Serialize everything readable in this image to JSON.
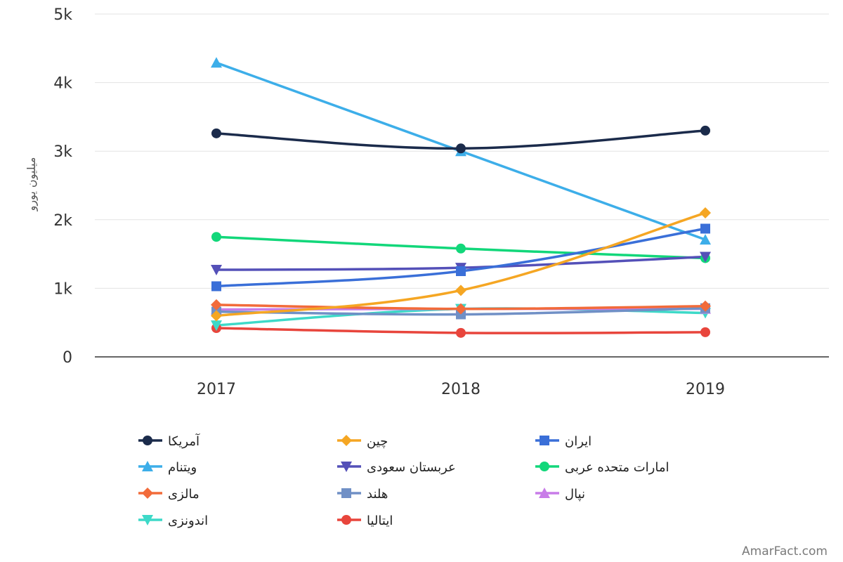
{
  "chart_data": {
    "type": "line",
    "x": [
      "2017",
      "2018",
      "2019"
    ],
    "ylabel": "میلیون یورو",
    "ylim": [
      0,
      5000
    ],
    "yticks": [
      {
        "value": 0,
        "label": "0"
      },
      {
        "value": 1000,
        "label": "1k"
      },
      {
        "value": 2000,
        "label": "2k"
      },
      {
        "value": 3000,
        "label": "3k"
      },
      {
        "value": 4000,
        "label": "4k"
      },
      {
        "value": 5000,
        "label": "5k"
      }
    ],
    "grid": true,
    "legend": "bottom",
    "series": [
      {
        "name": "آمریکا",
        "color": "#1b2b4b",
        "marker": "circle",
        "values": [
          3260,
          3040,
          3300
        ]
      },
      {
        "name": "چین",
        "color": "#f5a623",
        "marker": "diamond",
        "values": [
          600,
          970,
          2100
        ]
      },
      {
        "name": "ایران",
        "color": "#3a6fd8",
        "marker": "square",
        "values": [
          1030,
          1250,
          1870
        ]
      },
      {
        "name": "ویتنام",
        "color": "#3daee9",
        "marker": "triangle-up",
        "values": [
          4290,
          3000,
          1710
        ]
      },
      {
        "name": "عربستان سعودی",
        "color": "#5450b8",
        "marker": "triangle-down",
        "values": [
          1270,
          1300,
          1460
        ]
      },
      {
        "name": "امارات متحده عربی",
        "color": "#12d77a",
        "marker": "circle",
        "values": [
          1750,
          1580,
          1440
        ]
      },
      {
        "name": "مالزی",
        "color": "#f26b3a",
        "marker": "diamond",
        "values": [
          760,
          700,
          740
        ]
      },
      {
        "name": "هلند",
        "color": "#7090c6",
        "marker": "square",
        "values": [
          660,
          620,
          710
        ]
      },
      {
        "name": "نپال",
        "color": "#c87ce8",
        "marker": "triangle-up",
        "values": [
          690,
          700,
          700
        ]
      },
      {
        "name": "اندونزی",
        "color": "#3dd9c8",
        "marker": "triangle-down",
        "values": [
          460,
          700,
          640
        ]
      },
      {
        "name": "ایتالیا",
        "color": "#e8453c",
        "marker": "circle",
        "values": [
          420,
          350,
          360
        ]
      }
    ]
  },
  "credit": "AmarFact.com"
}
